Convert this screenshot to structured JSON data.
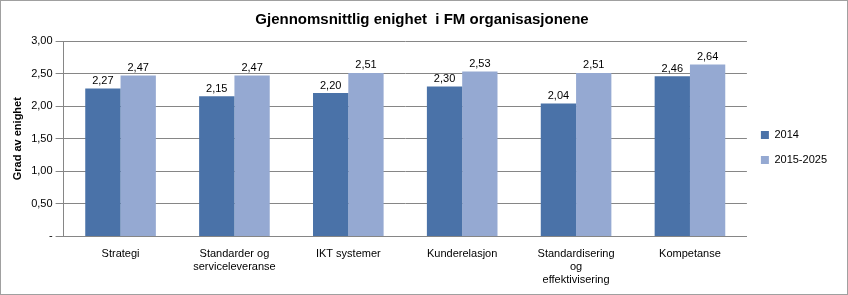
{
  "chart_data": {
    "type": "bar",
    "title": "Gjennomsnittlig enighet  i FM organisasjonene",
    "y_label": "Grad av enighet",
    "categories": [
      "Strategi",
      "Standarder og serviceleveranse",
      "IKT systemer",
      "Kunderelasjon",
      "Standardisering og effektivisering",
      "Kompetanse"
    ],
    "series": [
      {
        "name": "2014",
        "color": "#4a72a8",
        "values": [
          2.27,
          2.15,
          2.2,
          2.3,
          2.04,
          2.46
        ],
        "value_labels": [
          "2,27",
          "2,15",
          "2,20",
          "2,30",
          "2,04",
          "2,46"
        ]
      },
      {
        "name": "2015-2025",
        "color": "#95a9d2",
        "values": [
          2.47,
          2.47,
          2.51,
          2.53,
          2.51,
          2.64
        ],
        "value_labels": [
          "2,47",
          "2,47",
          "2,51",
          "2,53",
          "2,51",
          "2,64"
        ]
      }
    ],
    "ylim": [
      0,
      3
    ],
    "yticks": [
      {
        "value": 0,
        "label": "-"
      },
      {
        "value": 0.5,
        "label": "0,50"
      },
      {
        "value": 1,
        "label": "1,00"
      },
      {
        "value": 1.5,
        "label": "1,50"
      },
      {
        "value": 2,
        "label": "2,00"
      },
      {
        "value": 2.5,
        "label": "2,50"
      },
      {
        "value": 3,
        "label": "3,00"
      }
    ],
    "grid": true,
    "legend": "right",
    "data_labels": true
  }
}
